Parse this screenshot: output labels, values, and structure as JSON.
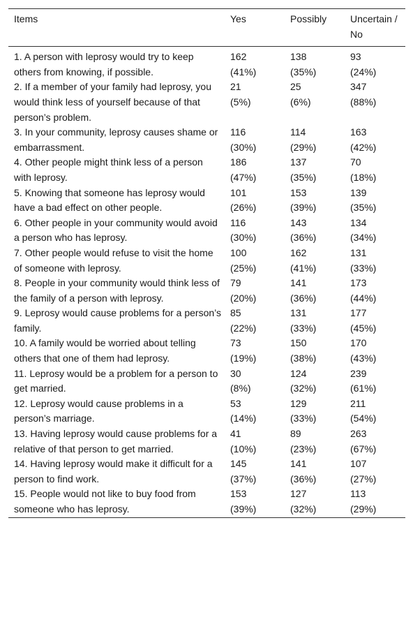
{
  "table": {
    "headers": [
      "Items",
      "Yes",
      "Possibly",
      "Uncertain / No"
    ],
    "rows": [
      {
        "item": "1. A person with leprosy would try to keep others from knowing, if possible.",
        "yes": [
          "162",
          "(41%)"
        ],
        "possibly": [
          "138",
          "(35%)"
        ],
        "no": [
          "93",
          "(24%)"
        ]
      },
      {
        "item": "2. If a member of your family had leprosy, you would think less of yourself because of that person’s problem.",
        "yes": [
          "21",
          "(5%)"
        ],
        "possibly": [
          "25",
          "(6%)"
        ],
        "no": [
          "347",
          "(88%)"
        ]
      },
      {
        "item": "3. In your community, leprosy causes shame or embarrassment.",
        "yes": [
          "116",
          "(30%)"
        ],
        "possibly": [
          "114",
          "(29%)"
        ],
        "no": [
          "163",
          "(42%)"
        ]
      },
      {
        "item": "4. Other people might think less of a person with leprosy.",
        "yes": [
          "186",
          "(47%)"
        ],
        "possibly": [
          "137",
          "(35%)"
        ],
        "no": [
          "70",
          "(18%)"
        ]
      },
      {
        "item": "5. Knowing that someone has leprosy would have a bad effect on other people.",
        "yes": [
          "101",
          "(26%)"
        ],
        "possibly": [
          "153",
          "(39%)"
        ],
        "no": [
          "139",
          "(35%)"
        ]
      },
      {
        "item": "6. Other people in your community would avoid a person who has leprosy.",
        "yes": [
          "116",
          "(30%)"
        ],
        "possibly": [
          "143",
          "(36%)"
        ],
        "no": [
          "134",
          "(34%)"
        ]
      },
      {
        "item": "7. Other people would refuse to visit the home of someone with leprosy.",
        "yes": [
          "100",
          "(25%)"
        ],
        "possibly": [
          "162",
          "(41%)"
        ],
        "no": [
          "131",
          "(33%)"
        ]
      },
      {
        "item": "8. People in your community would think less of the family of a person with leprosy.",
        "yes": [
          "79",
          "(20%)"
        ],
        "possibly": [
          "141",
          "(36%)"
        ],
        "no": [
          "173",
          "(44%)"
        ]
      },
      {
        "item": "9. Leprosy would cause problems for a person’s family.",
        "yes": [
          "85",
          "(22%)"
        ],
        "possibly": [
          "131",
          "(33%)"
        ],
        "no": [
          "177",
          "(45%)"
        ]
      },
      {
        "item": "10. A family would be worried about telling others that one of them had leprosy.",
        "yes": [
          "73",
          "(19%)"
        ],
        "possibly": [
          "150",
          "(38%)"
        ],
        "no": [
          "170",
          "(43%)"
        ]
      },
      {
        "item": "11. Leprosy would be a problem for a person to get married.",
        "yes": [
          "30",
          "(8%)"
        ],
        "possibly": [
          "124",
          "(32%)"
        ],
        "no": [
          "239",
          "(61%)"
        ]
      },
      {
        "item": "12. Leprosy would cause problems in a person’s marriage.",
        "yes": [
          "53",
          "(14%)"
        ],
        "possibly": [
          "129",
          "(33%)"
        ],
        "no": [
          "211",
          "(54%)"
        ]
      },
      {
        "item": "13. Having leprosy would cause problems for a relative of that person to get married.",
        "yes": [
          "41",
          "(10%)"
        ],
        "possibly": [
          "89",
          "(23%)"
        ],
        "no": [
          "263",
          "(67%)"
        ]
      },
      {
        "item": "14. Having leprosy would make it difficult for a person to find work.",
        "yes": [
          "145",
          "(37%)"
        ],
        "possibly": [
          "141",
          "(36%)"
        ],
        "no": [
          "107",
          "(27%)"
        ]
      },
      {
        "item": "15. People would not like to buy food from someone who has leprosy.",
        "yes": [
          "153",
          "(39%)"
        ],
        "possibly": [
          "127",
          "(32%)"
        ],
        "no": [
          "113",
          "(29%)"
        ]
      }
    ]
  }
}
